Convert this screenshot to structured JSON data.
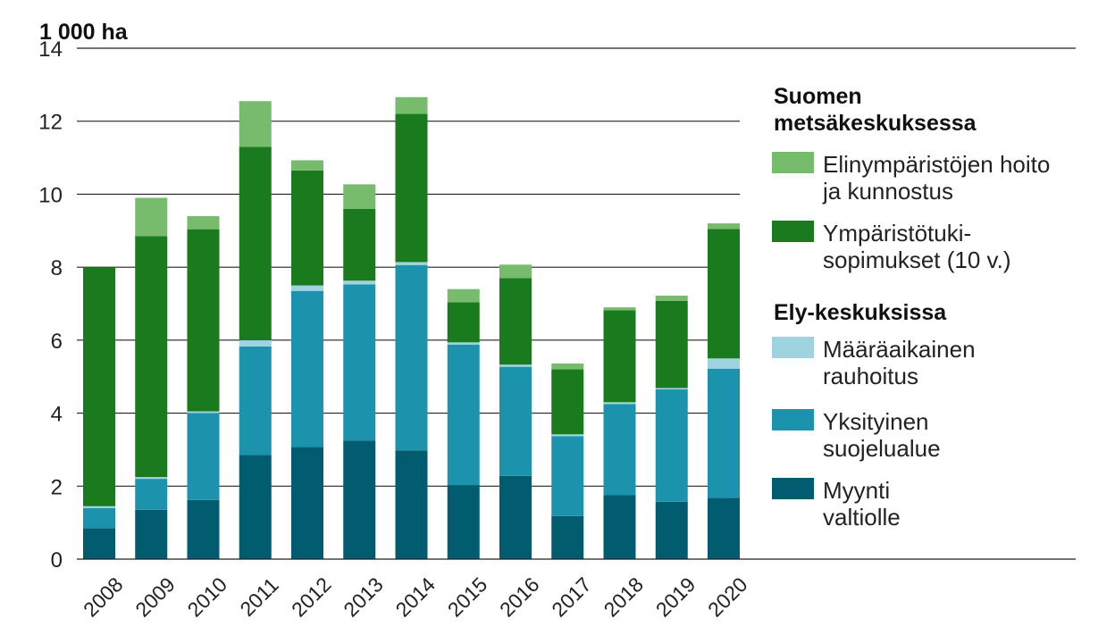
{
  "chart_data": {
    "type": "bar",
    "stacked": true,
    "title": "",
    "unit_label": "1 000 ha",
    "xlabel": "",
    "ylabel": "",
    "ylim": [
      0,
      14
    ],
    "yticks": [
      0,
      2,
      4,
      6,
      8,
      10,
      12,
      14
    ],
    "grid": true,
    "legend_position": "right",
    "categories": [
      "2008",
      "2009",
      "2010",
      "2011",
      "2012",
      "2013",
      "2014",
      "2015",
      "2016",
      "2017",
      "2018",
      "2019",
      "2020"
    ],
    "series": [
      {
        "name": "Myynti valtiolle",
        "color": "#005c6e",
        "values": [
          0.85,
          1.35,
          1.62,
          2.85,
          3.07,
          3.25,
          2.98,
          2.03,
          2.28,
          1.18,
          1.75,
          1.57,
          1.68
        ]
      },
      {
        "name": "Yksityinen suojelualue",
        "color": "#1c93ad",
        "values": [
          0.55,
          0.85,
          2.38,
          2.98,
          4.28,
          4.28,
          5.08,
          3.85,
          2.99,
          2.19,
          2.5,
          3.08,
          3.54
        ]
      },
      {
        "name": "Määräaikainen rauhoitus",
        "color": "#9ed3df",
        "values": [
          0.05,
          0.05,
          0.05,
          0.17,
          0.15,
          0.1,
          0.08,
          0.06,
          0.06,
          0.05,
          0.05,
          0.04,
          0.28
        ]
      },
      {
        "name": "Ympäristötuki-sopimukset (10 v.)",
        "color": "#1a7a1e",
        "values": [
          6.55,
          6.6,
          4.99,
          5.3,
          3.15,
          1.97,
          4.06,
          1.1,
          2.37,
          1.78,
          2.52,
          2.39,
          3.55
        ]
      },
      {
        "name": "Elinympäristöjen hoito ja kunnostus",
        "color": "#77bb6c",
        "values": [
          0.0,
          1.05,
          0.36,
          1.25,
          0.28,
          0.67,
          0.46,
          0.36,
          0.37,
          0.16,
          0.08,
          0.14,
          0.15
        ]
      }
    ],
    "legend": {
      "group1_title_lines": [
        "Suomen",
        "metsäkeskuksessa"
      ],
      "group2_title_lines": [
        "Ely-keskuksissa"
      ],
      "entries": [
        {
          "series": 4,
          "lines": [
            "Elinympäristöjen hoito",
            "ja kunnostus"
          ]
        },
        {
          "series": 3,
          "lines": [
            "Ympäristötuki-",
            "sopimukset (10 v.)"
          ]
        },
        {
          "series": 2,
          "lines": [
            "Määräaikainen",
            "rauhoitus"
          ]
        },
        {
          "series": 1,
          "lines": [
            "Yksityinen",
            "suojelualue"
          ]
        },
        {
          "series": 0,
          "lines": [
            "Myynti",
            "valtiolle"
          ]
        }
      ]
    }
  }
}
